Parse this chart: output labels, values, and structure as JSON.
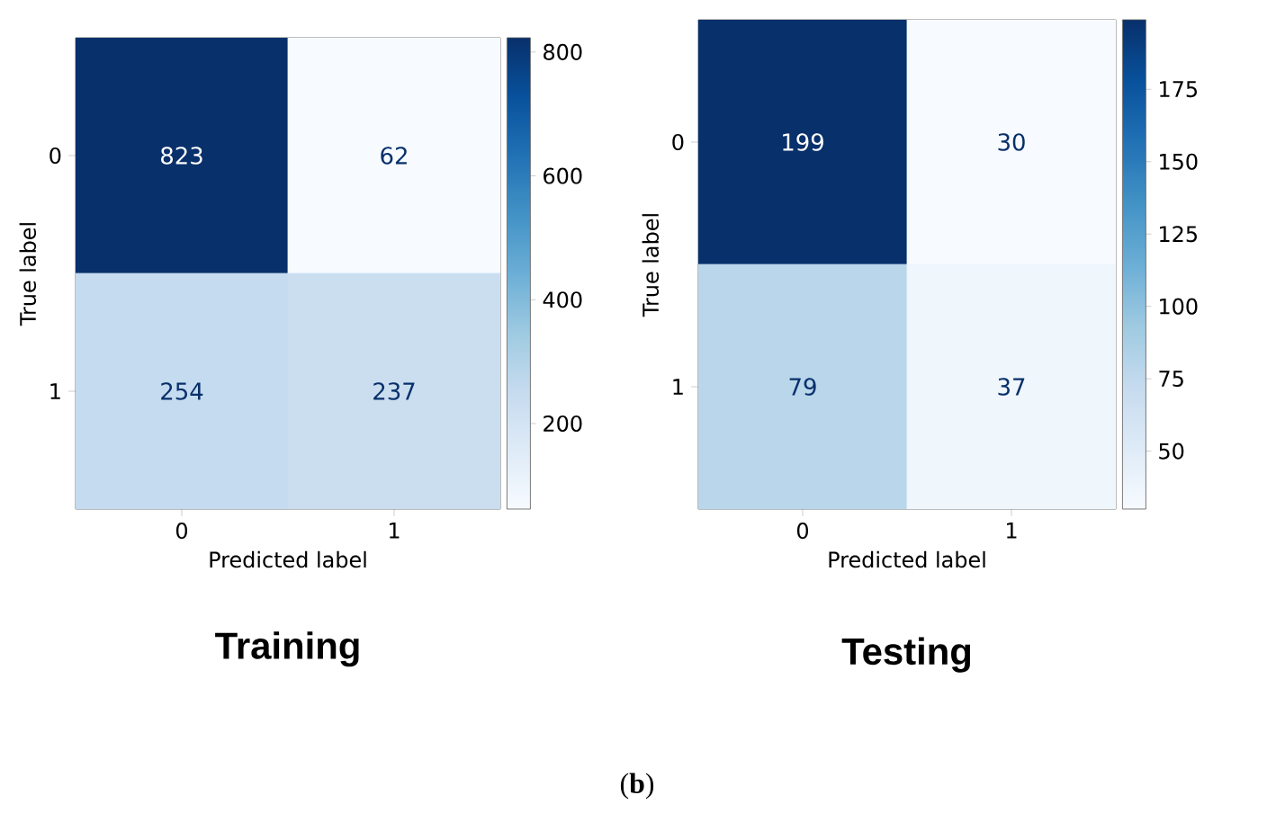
{
  "chart_data": [
    {
      "type": "heatmap",
      "title": "Training",
      "xlabel": "Predicted label",
      "ylabel": "True label",
      "categories": [
        "0",
        "1"
      ],
      "y_categories": [
        "0",
        "1"
      ],
      "cells": [
        [
          823,
          62
        ],
        [
          254,
          237
        ]
      ],
      "data_labels": true,
      "clim": [
        62,
        823
      ],
      "cticks": [
        200,
        400,
        600,
        800
      ]
    },
    {
      "type": "heatmap",
      "title": "Testing",
      "xlabel": "Predicted label",
      "ylabel": "True label",
      "categories": [
        "0",
        "1"
      ],
      "y_categories": [
        "0",
        "1"
      ],
      "cells": [
        [
          199,
          30
        ],
        [
          79,
          37
        ]
      ],
      "data_labels": true,
      "clim": [
        30,
        199
      ],
      "cticks": [
        50,
        75,
        100,
        125,
        150,
        175
      ],
      "annotations": [
        "(**b**)"
      ]
    }
  ]
}
